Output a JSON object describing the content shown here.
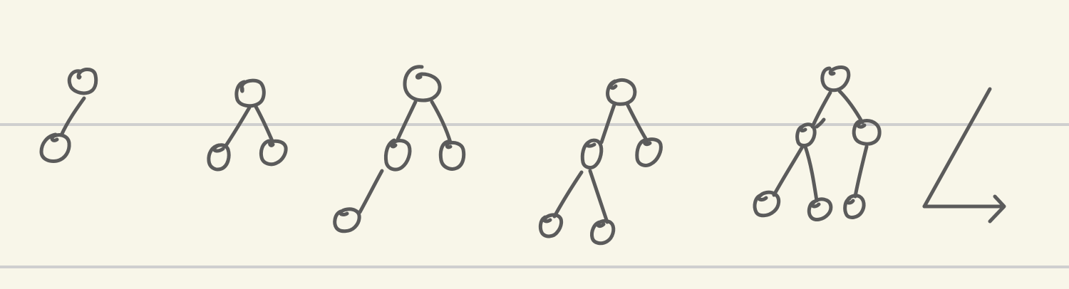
{
  "diagram": {
    "description_visible_text": "",
    "colors": {
      "background": "#F8F6E9",
      "ink": "#5B5B5B",
      "rule_line": "#CFCFCF"
    },
    "trees": [
      {
        "node_count": 2,
        "shape": "root with single left child"
      },
      {
        "node_count": 3,
        "shape": "root with two children"
      },
      {
        "node_count": 4,
        "shape": "root with two children, left child has one left child"
      },
      {
        "node_count": 5,
        "shape": "root with two children, left child has two children"
      },
      {
        "node_count": 6,
        "shape": "root with two children, left child has two children, right child has one child"
      }
    ],
    "trailing_glyph": "angle-arrow"
  }
}
